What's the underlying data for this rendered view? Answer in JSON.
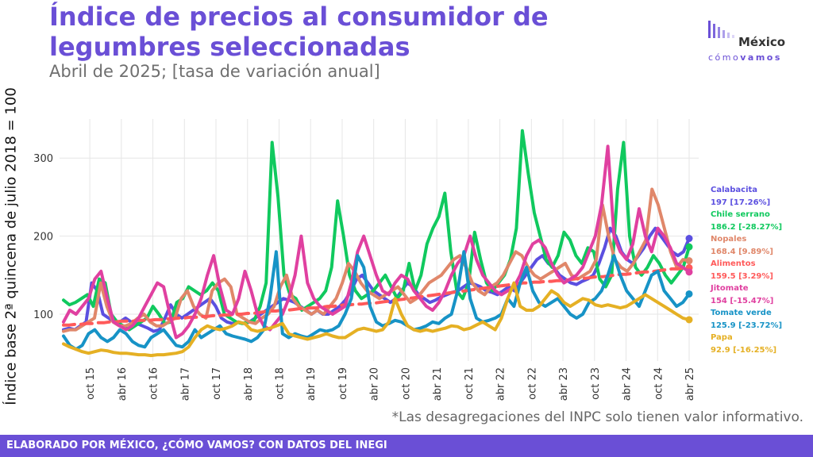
{
  "title": "Índice de precios al consumidor de legumbres seleccionadas",
  "subtitle": "Abril de 2025; [tasa de variación anual]",
  "logo": {
    "name": "México",
    "tag_light": "cómo",
    "tag_bold": "vamos"
  },
  "note": "*Las desagregaciones del INPC solo tienen valor informativo.",
  "footer": "ELABORADO POR MÉXICO, ¿CÓMO VAMOS? CON DATOS DEL INEGI",
  "colors": {
    "accent": "#6a4fd6",
    "grid": "#e6e6e6"
  },
  "chart_data": {
    "type": "line",
    "ylabel": "Índice base 2ª quincena de julio 2018 = 100",
    "xlabel": "",
    "x_start": "2015-05",
    "x_end": "2025-04",
    "ylim": [
      40,
      350
    ],
    "yticks": [
      100,
      200,
      300
    ],
    "xticks": [
      {
        "date": "2015-10",
        "label": "oct 15"
      },
      {
        "date": "2016-04",
        "label": "abr 16"
      },
      {
        "date": "2016-10",
        "label": "oct 16"
      },
      {
        "date": "2017-04",
        "label": "abr 17"
      },
      {
        "date": "2017-10",
        "label": "oct 17"
      },
      {
        "date": "2018-04",
        "label": "abr 18"
      },
      {
        "date": "2018-10",
        "label": "oct 18"
      },
      {
        "date": "2019-04",
        "label": "abr 19"
      },
      {
        "date": "2019-10",
        "label": "oct 19"
      },
      {
        "date": "2020-04",
        "label": "abr 20"
      },
      {
        "date": "2020-10",
        "label": "oct 20"
      },
      {
        "date": "2021-04",
        "label": "abr 21"
      },
      {
        "date": "2021-10",
        "label": "oct 21"
      },
      {
        "date": "2022-04",
        "label": "abr 22"
      },
      {
        "date": "2022-10",
        "label": "oct 22"
      },
      {
        "date": "2023-04",
        "label": "abr 23"
      },
      {
        "date": "2023-10",
        "label": "oct 23"
      },
      {
        "date": "2024-04",
        "label": "abr 24"
      },
      {
        "date": "2024-10",
        "label": "oct 24"
      },
      {
        "date": "2025-04",
        "label": "abr 25"
      }
    ],
    "grid": true,
    "legend_position": "right",
    "series": [
      {
        "name": "Calabacita",
        "label": "197 [17.26%]",
        "color": "#5b4fe0",
        "width": 4,
        "dash": false,
        "values": [
          80,
          82,
          80,
          85,
          90,
          140,
          130,
          100,
          95,
          90,
          90,
          95,
          90,
          88,
          85,
          82,
          78,
          80,
          95,
          112,
          100,
          95,
          100,
          105,
          110,
          115,
          120,
          110,
          95,
          90,
          88,
          90,
          88,
          90,
          95,
          100,
          105,
          110,
          115,
          120,
          118,
          115,
          110,
          105,
          100,
          105,
          100,
          100,
          105,
          110,
          118,
          130,
          145,
          150,
          140,
          130,
          125,
          120,
          115,
          120,
          130,
          140,
          135,
          125,
          120,
          115,
          118,
          122,
          125,
          128,
          130,
          135,
          140,
          138,
          135,
          130,
          128,
          125,
          130,
          135,
          130,
          140,
          150,
          160,
          170,
          175,
          165,
          160,
          150,
          145,
          140,
          138,
          142,
          145,
          150,
          165,
          185,
          210,
          200,
          180,
          170,
          165,
          175,
          185,
          200,
          210,
          200,
          190,
          180,
          175,
          180,
          197
        ]
      },
      {
        "name": "Chile serrano",
        "label": "186.2 [-28.27%]",
        "color": "#10c95e",
        "width": 4,
        "dash": false,
        "values": [
          118,
          112,
          115,
          120,
          125,
          110,
          145,
          140,
          100,
          90,
          85,
          80,
          85,
          90,
          95,
          110,
          100,
          88,
          90,
          115,
          120,
          135,
          130,
          125,
          130,
          140,
          130,
          100,
          95,
          90,
          88,
          90,
          92,
          110,
          140,
          320,
          250,
          150,
          125,
          120,
          105,
          110,
          115,
          120,
          130,
          160,
          245,
          200,
          150,
          130,
          120,
          125,
          130,
          140,
          150,
          135,
          120,
          130,
          165,
          130,
          150,
          190,
          210,
          225,
          255,
          180,
          130,
          120,
          140,
          205,
          170,
          140,
          130,
          140,
          150,
          170,
          210,
          335,
          280,
          230,
          200,
          170,
          160,
          175,
          205,
          195,
          175,
          165,
          185,
          180,
          145,
          135,
          150,
          260,
          320,
          200,
          160,
          150,
          160,
          175,
          165,
          150,
          140,
          150,
          160,
          186.2
        ]
      },
      {
        "name": "Nopales",
        "label": "168.4 [9.89%]",
        "color": "#e0876a",
        "width": 4,
        "dash": false,
        "values": [
          78,
          80,
          80,
          85,
          90,
          95,
          140,
          110,
          90,
          85,
          85,
          88,
          95,
          100,
          90,
          85,
          85,
          90,
          95,
          120,
          130,
          110,
          100,
          95,
          130,
          140,
          145,
          135,
          100,
          95,
          90,
          88,
          95,
          100,
          110,
          135,
          150,
          120,
          110,
          105,
          100,
          105,
          100,
          110,
          120,
          140,
          165,
          155,
          140,
          130,
          125,
          120,
          125,
          130,
          135,
          125,
          115,
          120,
          130,
          140,
          145,
          150,
          160,
          170,
          175,
          160,
          140,
          130,
          125,
          135,
          140,
          150,
          165,
          180,
          175,
          160,
          150,
          145,
          150,
          155,
          160,
          165,
          150,
          145,
          150,
          155,
          170,
          240,
          200,
          170,
          160,
          155,
          165,
          180,
          195,
          260,
          240,
          210,
          180,
          160,
          170,
          168.4
        ]
      },
      {
        "name": "Alimentos",
        "label": "159.5 [3.29%]",
        "color": "#ff5a5a",
        "width": 4,
        "dash": true,
        "values": [
          86,
          86,
          87,
          87,
          88,
          88,
          89,
          89,
          90,
          90,
          91,
          91,
          91,
          92,
          92,
          92,
          93,
          93,
          94,
          94,
          95,
          95,
          96,
          96,
          97,
          97,
          98,
          98,
          99,
          99,
          100,
          100,
          101,
          101,
          102,
          103,
          104,
          104,
          105,
          105,
          106,
          107,
          107,
          108,
          108,
          109,
          110,
          110,
          111,
          112,
          112,
          113,
          113,
          114,
          114,
          115,
          116,
          117,
          118,
          119,
          120,
          121,
          122,
          123,
          124,
          125,
          126,
          127,
          128,
          129,
          130,
          131,
          132,
          133,
          134,
          135,
          136,
          137,
          138,
          139,
          140,
          140,
          141,
          141,
          142,
          142,
          143,
          143,
          144,
          145,
          146,
          146,
          147,
          148,
          148,
          149,
          150,
          151,
          151,
          152,
          153,
          154,
          154,
          155,
          156,
          157,
          158,
          158,
          159,
          159.5
        ]
      },
      {
        "name": "Jitomate",
        "label": "154 [-15.47%]",
        "color": "#e040a0",
        "width": 4,
        "dash": false,
        "values": [
          90,
          105,
          100,
          110,
          120,
          145,
          155,
          120,
          90,
          85,
          80,
          85,
          95,
          110,
          125,
          140,
          135,
          100,
          70,
          75,
          85,
          100,
          120,
          150,
          175,
          135,
          105,
          100,
          120,
          155,
          130,
          100,
          85,
          80,
          90,
          100,
          120,
          150,
          200,
          140,
          120,
          110,
          105,
          100,
          105,
          110,
          140,
          180,
          200,
          175,
          150,
          130,
          125,
          140,
          150,
          145,
          130,
          120,
          110,
          105,
          115,
          130,
          150,
          165,
          175,
          200,
          170,
          150,
          140,
          130,
          125,
          130,
          135,
          150,
          175,
          190,
          195,
          185,
          165,
          150,
          140,
          145,
          150,
          160,
          180,
          200,
          240,
          315,
          200,
          180,
          170,
          190,
          235,
          200,
          180,
          210,
          200,
          185,
          165,
          160,
          154
        ]
      },
      {
        "name": "Tomate verde",
        "label": "125.9 [-23.72%]",
        "color": "#1793c6",
        "width": 4,
        "dash": false,
        "values": [
          72,
          60,
          55,
          60,
          75,
          80,
          70,
          65,
          70,
          80,
          75,
          65,
          60,
          58,
          70,
          75,
          80,
          70,
          60,
          58,
          65,
          80,
          70,
          75,
          80,
          85,
          75,
          72,
          70,
          68,
          65,
          70,
          80,
          120,
          180,
          75,
          70,
          75,
          72,
          70,
          75,
          80,
          78,
          80,
          85,
          100,
          120,
          175,
          160,
          110,
          90,
          85,
          88,
          92,
          90,
          85,
          80,
          82,
          85,
          90,
          88,
          95,
          100,
          130,
          180,
          120,
          95,
          90,
          92,
          95,
          100,
          120,
          110,
          140,
          160,
          130,
          115,
          110,
          115,
          120,
          110,
          100,
          95,
          100,
          115,
          120,
          130,
          150,
          175,
          150,
          130,
          120,
          110,
          130,
          150,
          155,
          130,
          120,
          110,
          115,
          125.9
        ]
      },
      {
        "name": "Papa",
        "label": "92.9 [-16.25%]",
        "color": "#e5b024",
        "width": 4,
        "dash": false,
        "values": [
          62,
          58,
          55,
          52,
          50,
          52,
          54,
          53,
          51,
          50,
          50,
          49,
          48,
          48,
          47,
          48,
          48,
          49,
          50,
          52,
          58,
          70,
          80,
          85,
          82,
          80,
          82,
          85,
          90,
          88,
          80,
          78,
          80,
          82,
          85,
          88,
          75,
          72,
          70,
          68,
          70,
          72,
          75,
          72,
          70,
          70,
          75,
          80,
          82,
          80,
          78,
          80,
          90,
          120,
          100,
          85,
          80,
          78,
          80,
          78,
          80,
          82,
          85,
          84,
          80,
          82,
          86,
          90,
          85,
          80,
          95,
          120,
          140,
          110,
          105,
          105,
          110,
          120,
          130,
          125,
          115,
          110,
          115,
          120,
          118,
          112,
          110,
          112,
          110,
          108,
          110,
          115,
          120,
          125,
          120,
          115,
          110,
          105,
          100,
          95,
          92.9
        ]
      }
    ]
  }
}
